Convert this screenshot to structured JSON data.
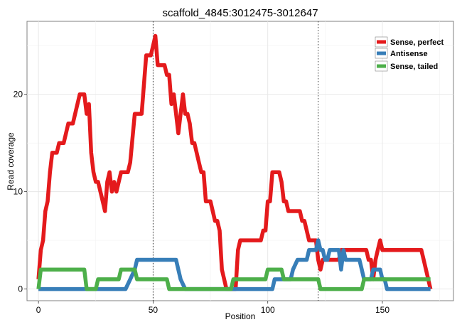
{
  "chart_data": {
    "type": "line",
    "title": "scaffold_4845:3012475-3012647",
    "xlabel": "Position",
    "ylabel": "Read coverage",
    "xlim": [
      -5,
      181
    ],
    "ylim": [
      -1.2,
      27.5
    ],
    "xticks": [
      0,
      50,
      100,
      150
    ],
    "yticks": [
      0,
      10,
      20
    ],
    "grid": true,
    "legend_position": "top-right",
    "vlines": [
      50,
      122
    ],
    "series": [
      {
        "name": "Sense, perfect",
        "color": "#e41a1c",
        "points": [
          [
            0,
            1
          ],
          [
            1,
            4
          ],
          [
            2,
            5
          ],
          [
            3,
            8
          ],
          [
            4,
            9
          ],
          [
            5,
            12
          ],
          [
            6,
            14
          ],
          [
            8,
            14
          ],
          [
            9,
            15
          ],
          [
            11,
            15
          ],
          [
            13,
            17
          ],
          [
            15,
            17
          ],
          [
            18,
            20
          ],
          [
            20,
            20
          ],
          [
            21,
            18
          ],
          [
            22,
            19
          ],
          [
            23,
            14
          ],
          [
            24,
            12
          ],
          [
            25,
            11
          ],
          [
            26,
            11
          ],
          [
            28,
            9
          ],
          [
            29,
            8
          ],
          [
            30,
            11
          ],
          [
            31,
            12
          ],
          [
            32,
            10
          ],
          [
            33,
            11
          ],
          [
            34,
            10
          ],
          [
            36,
            12
          ],
          [
            39,
            12
          ],
          [
            40,
            13
          ],
          [
            42,
            18
          ],
          [
            45,
            18
          ],
          [
            47,
            24
          ],
          [
            49,
            24
          ],
          [
            50,
            25
          ],
          [
            51,
            26
          ],
          [
            52,
            23
          ],
          [
            55,
            23
          ],
          [
            56,
            22
          ],
          [
            57,
            22
          ],
          [
            58,
            19
          ],
          [
            59,
            20
          ],
          [
            60,
            18
          ],
          [
            61,
            16
          ],
          [
            62,
            18
          ],
          [
            63,
            20
          ],
          [
            64,
            18
          ],
          [
            65,
            18
          ],
          [
            66,
            17
          ],
          [
            67,
            15
          ],
          [
            68,
            15
          ],
          [
            70,
            13
          ],
          [
            71,
            12
          ],
          [
            72,
            12
          ],
          [
            73,
            9
          ],
          [
            75,
            9
          ],
          [
            76,
            8
          ],
          [
            77,
            7
          ],
          [
            78,
            7
          ],
          [
            79,
            6
          ],
          [
            80,
            2
          ],
          [
            81,
            1
          ],
          [
            82,
            0
          ],
          [
            86,
            0
          ],
          [
            87,
            4
          ],
          [
            88,
            5
          ],
          [
            97,
            5
          ],
          [
            98,
            6
          ],
          [
            99,
            6
          ],
          [
            100,
            9
          ],
          [
            101,
            9
          ],
          [
            102,
            12
          ],
          [
            105,
            12
          ],
          [
            106,
            11
          ],
          [
            107,
            9
          ],
          [
            108,
            9
          ],
          [
            109,
            8
          ],
          [
            114,
            8
          ],
          [
            115,
            7
          ],
          [
            116,
            7
          ],
          [
            118,
            5
          ],
          [
            121,
            5
          ],
          [
            122,
            3
          ],
          [
            123,
            2
          ],
          [
            124,
            3
          ],
          [
            131,
            3
          ],
          [
            132,
            4
          ],
          [
            143,
            4
          ],
          [
            144,
            3
          ],
          [
            145,
            3
          ],
          [
            146,
            1
          ],
          [
            147,
            3
          ],
          [
            148,
            4
          ],
          [
            149,
            5
          ],
          [
            150,
            4
          ],
          [
            167,
            4
          ],
          [
            168,
            3
          ],
          [
            170,
            1
          ],
          [
            171,
            0
          ]
        ]
      },
      {
        "name": "Antisense",
        "color": "#377eb8",
        "points": [
          [
            0,
            0
          ],
          [
            38,
            0
          ],
          [
            40,
            1
          ],
          [
            42,
            2
          ],
          [
            43,
            3
          ],
          [
            60,
            3
          ],
          [
            61,
            2
          ],
          [
            62,
            1
          ],
          [
            64,
            0
          ],
          [
            102,
            0
          ],
          [
            103,
            1
          ],
          [
            110,
            1
          ],
          [
            111,
            2
          ],
          [
            113,
            3
          ],
          [
            117,
            3
          ],
          [
            118,
            4
          ],
          [
            121,
            4
          ],
          [
            122,
            5
          ],
          [
            123,
            4
          ],
          [
            124,
            4
          ],
          [
            125,
            3
          ],
          [
            126,
            3
          ],
          [
            127,
            4
          ],
          [
            131,
            4
          ],
          [
            132,
            2
          ],
          [
            133,
            4
          ],
          [
            134,
            3
          ],
          [
            140,
            3
          ],
          [
            141,
            2
          ],
          [
            142,
            1
          ],
          [
            145,
            1
          ],
          [
            146,
            2
          ],
          [
            149,
            2
          ],
          [
            150,
            1
          ],
          [
            151,
            1
          ],
          [
            152,
            0
          ],
          [
            171,
            0
          ]
        ]
      },
      {
        "name": "Sense, tailed",
        "color": "#4daf4a",
        "points": [
          [
            0,
            0
          ],
          [
            1,
            2
          ],
          [
            20,
            2
          ],
          [
            21,
            0
          ],
          [
            25,
            0
          ],
          [
            26,
            1
          ],
          [
            35,
            1
          ],
          [
            36,
            2
          ],
          [
            42,
            2
          ],
          [
            43,
            1
          ],
          [
            56,
            1
          ],
          [
            57,
            0
          ],
          [
            59,
            0
          ],
          [
            60,
            0
          ],
          [
            84,
            0
          ],
          [
            85,
            1
          ],
          [
            99,
            1
          ],
          [
            100,
            2
          ],
          [
            106,
            2
          ],
          [
            107,
            1
          ],
          [
            122,
            1
          ],
          [
            123,
            0
          ],
          [
            141,
            0
          ],
          [
            142,
            1
          ],
          [
            171,
            1
          ]
        ]
      }
    ]
  }
}
